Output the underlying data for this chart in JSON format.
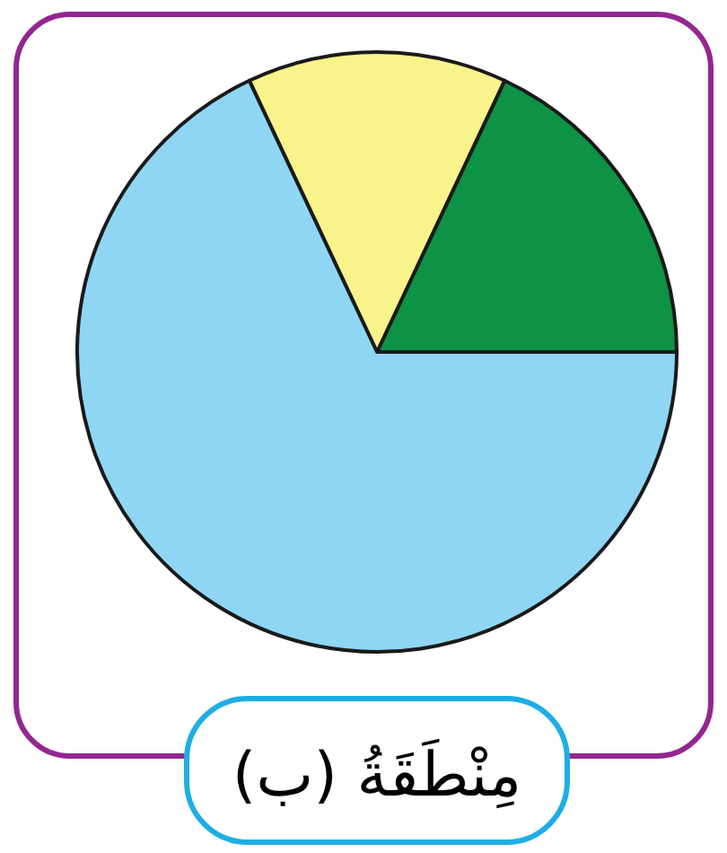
{
  "chart_data": {
    "type": "pie",
    "title": "مِنْطَقَةُ (ب)",
    "categories": [
      null,
      null,
      null
    ],
    "values": [
      18,
      14,
      68
    ],
    "colors": [
      "#0e9245",
      "#f9f38b",
      "#8fd6f4"
    ]
  }
}
